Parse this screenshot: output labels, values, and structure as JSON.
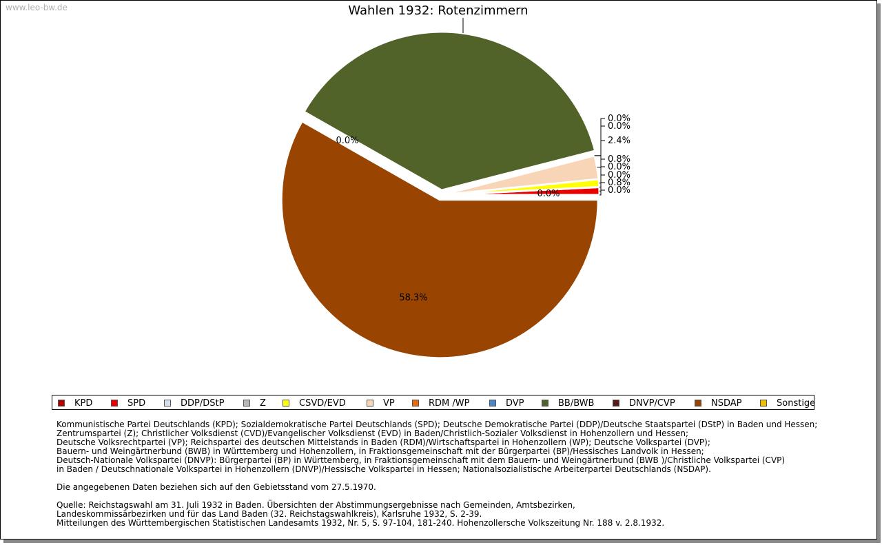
{
  "watermark": "www.leo-bw.de",
  "chart_data": {
    "type": "pie",
    "title": "Wahlen 1932: Rotenzimmern",
    "slices": [
      {
        "name": "KPD",
        "value": 0.0,
        "label": "0.0%",
        "color": "#b00000"
      },
      {
        "name": "SPD",
        "value": 0.8,
        "label": "0.8%",
        "color": "#e80000"
      },
      {
        "name": "DDP/DStP",
        "value": 0.0,
        "label": "0.0%",
        "color": "#d6dff0"
      },
      {
        "name": "Z",
        "value": 0.0,
        "label": "0.0%",
        "color": "#b8b8b8"
      },
      {
        "name": "CSVD/EVD",
        "value": 0.8,
        "label": "0.8%",
        "color": "#ffff00"
      },
      {
        "name": "VP",
        "value": 2.4,
        "label": "2.4%",
        "color": "#f9d5b8"
      },
      {
        "name": "RDM /WP",
        "value": 0.0,
        "label": "0.0%",
        "color": "#e86a10"
      },
      {
        "name": "DVP",
        "value": 0.0,
        "label": "0.0%",
        "color": "#4a86c8"
      },
      {
        "name": "BB/BWB",
        "value": 37.8,
        "label": "",
        "color": "#52632a"
      },
      {
        "name": "DNVP/CVP",
        "value": 0.0,
        "label": "0.0%",
        "color": "#5a1a1a"
      },
      {
        "name": "NSDAP",
        "value": 58.3,
        "label": "58.3%",
        "color": "#994400"
      },
      {
        "name": "Sonstige",
        "value": 0.0,
        "label": "0.0%",
        "color": "#f0c000"
      }
    ]
  },
  "notes": {
    "lines": [
      "Kommunistische Partei Deutschlands (KPD); Sozialdemokratische Partei Deutschlands (SPD); Deutsche Demokratische Partei (DDP)/Deutsche Staatspartei (DStP) in Baden und Hessen;",
      "Zentrumspartei (Z); Christlicher Volksdienst (CVD)/Evangelischer Volksdienst (EVD) in Baden/Christlich-Sozialer Volksdienst in Hohenzollern und Hessen;",
      "Deutsche Volksrechtpartei (VP); Reichspartei des deutschen Mittelstands in Baden (RDM)/Wirtschaftspartei in Hohenzollern (WP); Deutsche Volkspartei (DVP);",
      "Bauern- und Weingärtnerbund (BWB) in Württemberg und Hohenzollern, in Fraktionsgemeinschaft mit der Bürgerpartei (BP)/Hessisches Landvolk in Hessen;",
      "Deutsch-Nationale Volkspartei (DNVP): Bürgerpartei (BP) in Württemberg, in Fraktionsgemeinschaft mit dem Bauern- und Weingärtnerbund (BWB )/Christliche Volkspartei (CVP)",
      "in Baden / Deutschnationale Volkspartei in Hohenzollern (DNVP)/Hessische Volkspartei in Hessen; Nationalsozialistische Arbeiterpartei Deutschlands (NSDAP)."
    ],
    "gebietsstand": "Die angegebenen Daten beziehen sich auf den Gebietsstand vom 27.5.1970.",
    "quelle": [
      "Quelle: Reichstagswahl am 31. Juli 1932 in Baden. Übersichten der Abstimmungsergebnisse nach Gemeinden, Amtsbezirken,",
      "Landeskommissärbezirken und für das Land Baden (32. Reichstagswahlkreis), Karlsruhe 1932, S. 2-39.",
      "Mitteilungen des Württembergischen Statistischen Landesamts 1932, Nr. 5, S. 97-104, 181-240. Hohenzollersche Volkszeitung Nr. 188 v. 2.8.1932."
    ]
  }
}
